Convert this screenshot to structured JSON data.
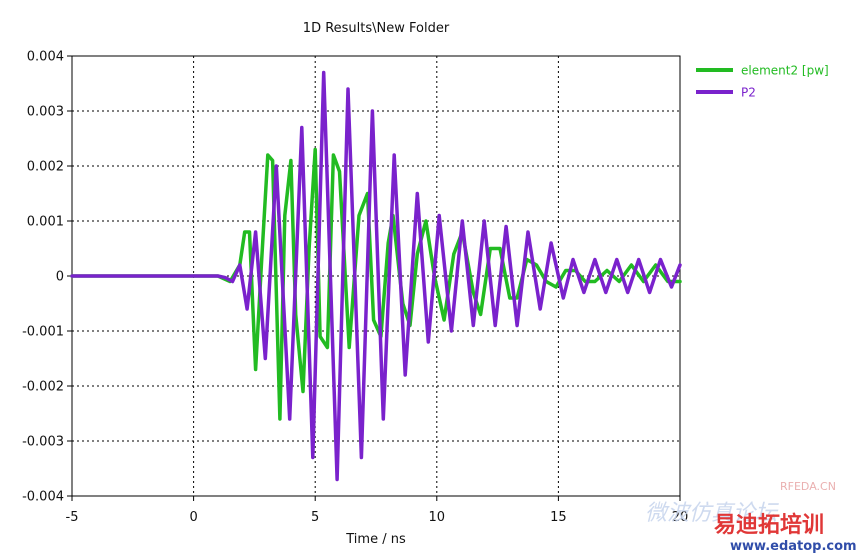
{
  "chart_data": {
    "type": "line",
    "title": "1D Results\\New Folder",
    "xlabel": "Time / ns",
    "ylabel": "",
    "xlim": [
      -5,
      20
    ],
    "ylim": [
      -0.004,
      0.004
    ],
    "grid": true,
    "legend_position": "top-right outside",
    "x_ticks": [
      "-5",
      "0",
      "5",
      "10",
      "15",
      "20"
    ],
    "y_ticks": [
      "0.004",
      "0.003",
      "0.002",
      "0.001",
      "0",
      "-0.001",
      "-0.002",
      "-0.003",
      "-0.004"
    ],
    "series": [
      {
        "name": "element2 [pw]",
        "color": "#22bb22",
        "points": [
          [
            -5,
            0
          ],
          [
            0,
            0
          ],
          [
            1.0,
            0
          ],
          [
            1.5,
            -0.0001
          ],
          [
            1.9,
            0.0002
          ],
          [
            2.1,
            0.0008
          ],
          [
            2.3,
            0.0008
          ],
          [
            2.55,
            -0.0017
          ],
          [
            2.8,
            0.0003
          ],
          [
            3.05,
            0.0022
          ],
          [
            3.25,
            0.0021
          ],
          [
            3.55,
            -0.0026
          ],
          [
            3.75,
            0.0011
          ],
          [
            4.0,
            0.0021
          ],
          [
            4.2,
            -0.0007
          ],
          [
            4.5,
            -0.0021
          ],
          [
            4.75,
            0.0005
          ],
          [
            5.0,
            0.0023
          ],
          [
            5.2,
            -0.0011
          ],
          [
            5.5,
            -0.0013
          ],
          [
            5.75,
            0.0022
          ],
          [
            6.0,
            0.0019
          ],
          [
            6.4,
            -0.0013
          ],
          [
            6.8,
            0.0011
          ],
          [
            7.15,
            0.0015
          ],
          [
            7.4,
            -0.0008
          ],
          [
            7.7,
            -0.0011
          ],
          [
            8.0,
            0.0006
          ],
          [
            8.2,
            0.0011
          ],
          [
            8.6,
            -0.0005
          ],
          [
            8.9,
            -0.0009
          ],
          [
            9.2,
            0.0004
          ],
          [
            9.55,
            0.001
          ],
          [
            9.9,
            0.0
          ],
          [
            10.3,
            -0.0008
          ],
          [
            10.7,
            0.0004
          ],
          [
            11.05,
            0.0008
          ],
          [
            11.5,
            -0.0003
          ],
          [
            11.8,
            -0.0007
          ],
          [
            12.2,
            0.0005
          ],
          [
            12.6,
            0.0005
          ],
          [
            13.0,
            -0.0004
          ],
          [
            13.3,
            -0.0004
          ],
          [
            13.7,
            0.0003
          ],
          [
            14.1,
            0.0002
          ],
          [
            14.5,
            -0.0001
          ],
          [
            14.9,
            -0.0002
          ],
          [
            15.3,
            0.0001
          ],
          [
            15.7,
            0.0001
          ],
          [
            16.1,
            -0.0001
          ],
          [
            16.5,
            -0.0001
          ],
          [
            17.0,
            0.0001
          ],
          [
            17.5,
            -0.0001
          ],
          [
            18.0,
            0.0002
          ],
          [
            18.5,
            -0.0001
          ],
          [
            19.0,
            0.0002
          ],
          [
            19.5,
            -0.0001
          ],
          [
            20,
            -0.0001
          ]
        ]
      },
      {
        "name": "P2",
        "color": "#7a22cc",
        "points": [
          [
            -5,
            0
          ],
          [
            0,
            0
          ],
          [
            1.0,
            0
          ],
          [
            1.3,
            -3e-05
          ],
          [
            1.6,
            -0.0001
          ],
          [
            1.9,
            0.0002
          ],
          [
            2.2,
            -0.0006
          ],
          [
            2.55,
            0.0008
          ],
          [
            2.95,
            -0.0015
          ],
          [
            3.4,
            0.002
          ],
          [
            3.95,
            -0.0026
          ],
          [
            4.45,
            0.0027
          ],
          [
            4.9,
            -0.0033
          ],
          [
            5.35,
            0.0037
          ],
          [
            5.9,
            -0.0037
          ],
          [
            6.35,
            0.0034
          ],
          [
            6.9,
            -0.0033
          ],
          [
            7.35,
            0.003
          ],
          [
            7.8,
            -0.0026
          ],
          [
            8.25,
            0.0022
          ],
          [
            8.7,
            -0.0018
          ],
          [
            9.2,
            0.0015
          ],
          [
            9.65,
            -0.0012
          ],
          [
            10.1,
            0.0011
          ],
          [
            10.6,
            -0.001
          ],
          [
            11.05,
            0.001
          ],
          [
            11.5,
            -0.0009
          ],
          [
            11.95,
            0.001
          ],
          [
            12.4,
            -0.0009
          ],
          [
            12.85,
            0.0009
          ],
          [
            13.3,
            -0.0009
          ],
          [
            13.75,
            0.0008
          ],
          [
            14.25,
            -0.0006
          ],
          [
            14.7,
            0.0006
          ],
          [
            15.2,
            -0.0004
          ],
          [
            15.6,
            0.0003
          ],
          [
            16.05,
            -0.0003
          ],
          [
            16.5,
            0.0003
          ],
          [
            16.95,
            -0.0003
          ],
          [
            17.4,
            0.0003
          ],
          [
            17.85,
            -0.0003
          ],
          [
            18.3,
            0.0003
          ],
          [
            18.75,
            -0.0003
          ],
          [
            19.2,
            0.0003
          ],
          [
            19.65,
            -0.0002
          ],
          [
            20,
            0.0002
          ]
        ]
      }
    ]
  },
  "watermark": {
    "site_cn": "微波仿真论坛",
    "rfeda": "RFEDA.CN",
    "brand_cn": "易迪拓培训",
    "url": "www.edatop.com"
  }
}
